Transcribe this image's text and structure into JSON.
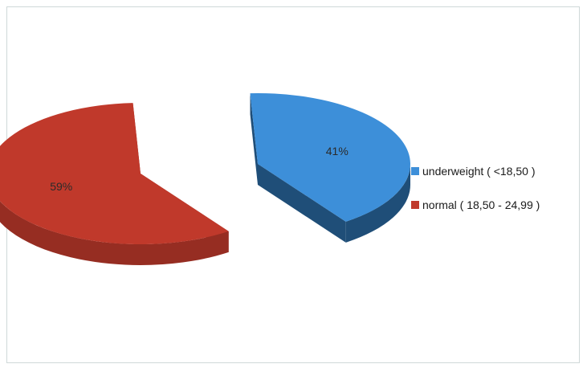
{
  "chart_data": {
    "type": "pie",
    "title": "",
    "slices": [
      {
        "label": "underweight ( <18,50 )",
        "value": 41,
        "display": "41%",
        "color": "#3d8fd9",
        "side_color": "#1f4e78"
      },
      {
        "label": "normal ( 18,50 - 24,99 )",
        "value": 59,
        "display": "59%",
        "color": "#c0392b",
        "side_color": "#962d22"
      }
    ],
    "legend_position": "right",
    "style": "3d-exploded"
  }
}
